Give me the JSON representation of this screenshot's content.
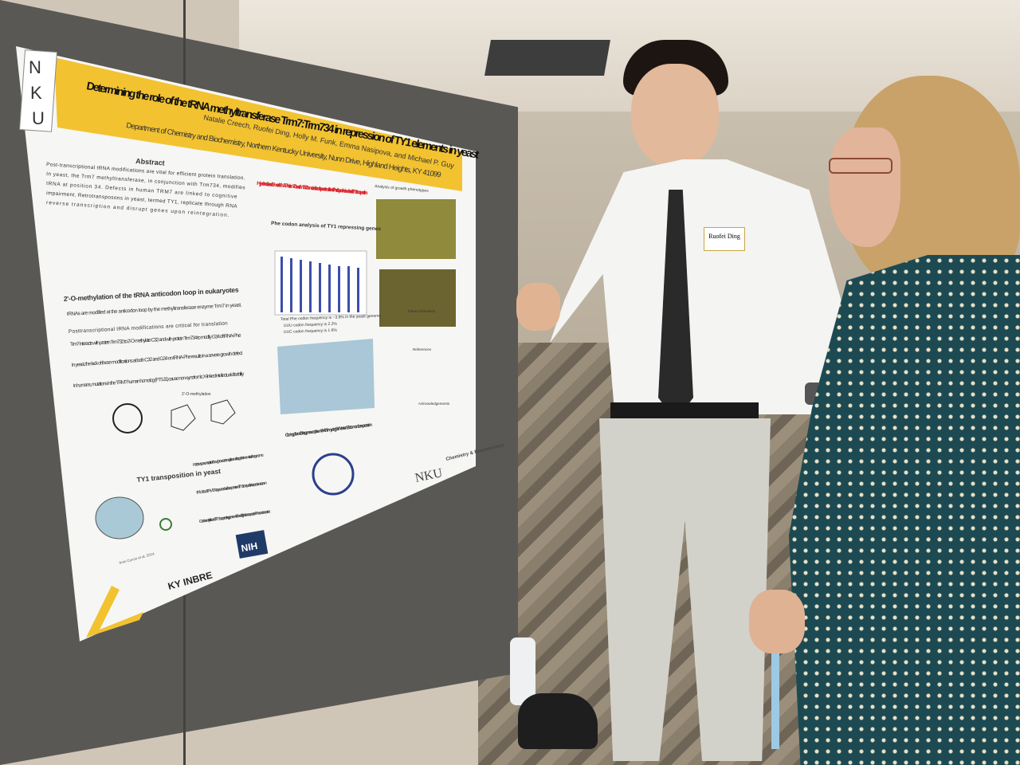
{
  "poster": {
    "logo_letters": [
      "N",
      "K",
      "U"
    ],
    "title": "Determining the role of the tRNA methyltransferase Trm7:Trm734 in repression of TY1 elements in yeast",
    "authors": "Natalie Creech, Ruofei Ding, Holly M. Funk, Emma Nasipova, and Michael P. Guy",
    "affiliation": "Department of Chemistry and Biochemistry, Northern Kentucky University, Nunn Drive, Highland Heights, KY 41099",
    "abstract_heading": "Abstract",
    "abstract_lines": [
      "Post-transcriptional tRNA modifications are vital for efficient protein translation.",
      "In yeast, the Trm7 methyltransferase, in conjunction with Trm734, modifies",
      "tRNA at position 34. Defects in human TRM7 are linked to cognitive",
      "impairment. Retrotransposons in yeast, termed TY1, replicate through RNA",
      "reverse transcription and disrupt genes upon reintegration."
    ],
    "hypothesis": "Hypothesis: loss of Gm on tRNA-Phe in trm7Δ and trm734Δ mutants leads to poor translation of Phe-rich proteins involved in TY1 transposition",
    "section_methylation": "2'-O-methylation of the tRNA anticodon loop in eukaryotes",
    "methylation_bullets": [
      "tRNAs are modified at the anticodon loop by the methyltransferase enzyme Trm7 in yeast.",
      "Posttranscriptional tRNA modifications are critical for translation",
      "Trm7 interacts with protein Trm732 to 2'-O-methylate C32 and with protein Trm734 to modify G34 of tRNA-Phe",
      "In yeast, the lack of these modifications at both C32 and G34 on tRNA-Phe results in a severe growth defect",
      "In humans, mutations in the TRM7 human homolog (FTSJ1) cause non-syndromic X-linked intellectual disability"
    ],
    "diagram_label": "2'-O-methylation",
    "section_codon": "Phe codon analysis of TY1 repressing genes",
    "codon_notes": [
      "Total Phe codon frequency is ~3.8% in the yeast genome",
      "UUU codon frequency is 2.2%",
      "UUC codon frequency is 1.6%"
    ],
    "section_growth": "Analysis of growth phenotypes",
    "section_ty1": "TY1 transposition in yeast",
    "ty1_notes": [
      "-Retrotransposons replicate through reverse transcription and integrate into new sites in the genome",
      "-TRM7 and TRM734 appeared to aid the repression of TY1 transposition in a previous screen",
      "-Codon analysis found 5 TY1-suppressing genes which had higher than expected Phe codon content"
    ],
    "source_note": "from Curcio et al. 2014",
    "section_cloning": "Cloning of candidate genes on plasmid with 9myc tag for Western Blot to monitor expression",
    "future_heading": "Future Directions",
    "references_heading": "References",
    "ack_heading": "Acknowledgements",
    "nku_logo": "NKU",
    "dept_logo": "Chemistry & Biochemistry",
    "kinbre_logo": "KY INBRE",
    "nih_logo": "NIH"
  },
  "badge": {
    "name": "Ruofei Ding"
  },
  "colors": {
    "poster_banner": "#f2c230",
    "board": "#5a5854",
    "hypothesis_red": "#d8262e",
    "shirt": "#f4f4f2",
    "dress": "#1d4a52"
  }
}
